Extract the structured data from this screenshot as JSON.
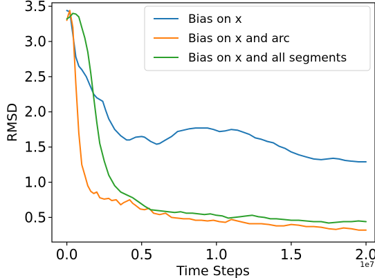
{
  "chart_data": {
    "type": "line",
    "title": "",
    "xlabel": "Time Steps",
    "ylabel": "RMSD",
    "x_offset_label": "1e7",
    "xlim": [
      -0.1,
      2.06
    ],
    "ylim": [
      0.15,
      3.55
    ],
    "xticks": [
      0.0,
      0.5,
      1.0,
      1.5,
      2.0
    ],
    "xtick_labels": [
      "0.0",
      "0.5",
      "1.0",
      "1.5",
      "2.0"
    ],
    "yticks": [
      0.5,
      1.0,
      1.5,
      2.0,
      2.5,
      3.0,
      3.5
    ],
    "ytick_labels": [
      "0.5",
      "1.0",
      "1.5",
      "2.0",
      "2.5",
      "3.0",
      "3.5"
    ],
    "grid": false,
    "legend_position": "top-right",
    "series": [
      {
        "name": "Bias on x",
        "color": "#1f77b4",
        "points": [
          [
            0,
            3.44
          ],
          [
            0.02,
            3.42
          ],
          [
            0.04,
            3.1
          ],
          [
            0.06,
            2.78
          ],
          [
            0.08,
            2.65
          ],
          [
            0.1,
            2.6
          ],
          [
            0.13,
            2.5
          ],
          [
            0.16,
            2.35
          ],
          [
            0.18,
            2.25
          ],
          [
            0.2,
            2.2
          ],
          [
            0.24,
            2.15
          ],
          [
            0.26,
            2.02
          ],
          [
            0.28,
            1.9
          ],
          [
            0.32,
            1.75
          ],
          [
            0.36,
            1.66
          ],
          [
            0.4,
            1.6
          ],
          [
            0.42,
            1.6
          ],
          [
            0.46,
            1.64
          ],
          [
            0.5,
            1.65
          ],
          [
            0.52,
            1.64
          ],
          [
            0.56,
            1.58
          ],
          [
            0.6,
            1.54
          ],
          [
            0.62,
            1.55
          ],
          [
            0.66,
            1.6
          ],
          [
            0.7,
            1.65
          ],
          [
            0.74,
            1.72
          ],
          [
            0.78,
            1.74
          ],
          [
            0.82,
            1.76
          ],
          [
            0.86,
            1.77
          ],
          [
            0.9,
            1.77
          ],
          [
            0.94,
            1.77
          ],
          [
            0.98,
            1.75
          ],
          [
            1.02,
            1.72
          ],
          [
            1.06,
            1.73
          ],
          [
            1.1,
            1.75
          ],
          [
            1.14,
            1.74
          ],
          [
            1.18,
            1.71
          ],
          [
            1.22,
            1.68
          ],
          [
            1.26,
            1.63
          ],
          [
            1.3,
            1.61
          ],
          [
            1.34,
            1.58
          ],
          [
            1.38,
            1.56
          ],
          [
            1.42,
            1.51
          ],
          [
            1.46,
            1.48
          ],
          [
            1.5,
            1.43
          ],
          [
            1.55,
            1.39
          ],
          [
            1.6,
            1.36
          ],
          [
            1.65,
            1.33
          ],
          [
            1.7,
            1.32
          ],
          [
            1.74,
            1.33
          ],
          [
            1.78,
            1.34
          ],
          [
            1.82,
            1.33
          ],
          [
            1.86,
            1.31
          ],
          [
            1.9,
            1.3
          ],
          [
            1.95,
            1.29
          ],
          [
            2.0,
            1.29
          ]
        ]
      },
      {
        "name": "Bias on x and arc",
        "color": "#ff7f0e",
        "points": [
          [
            0,
            3.3
          ],
          [
            0.01,
            3.38
          ],
          [
            0.02,
            3.44
          ],
          [
            0.04,
            3.2
          ],
          [
            0.06,
            2.4
          ],
          [
            0.08,
            1.7
          ],
          [
            0.1,
            1.25
          ],
          [
            0.12,
            1.1
          ],
          [
            0.14,
            0.95
          ],
          [
            0.16,
            0.87
          ],
          [
            0.18,
            0.84
          ],
          [
            0.2,
            0.86
          ],
          [
            0.22,
            0.78
          ],
          [
            0.25,
            0.76
          ],
          [
            0.28,
            0.77
          ],
          [
            0.3,
            0.74
          ],
          [
            0.33,
            0.75
          ],
          [
            0.36,
            0.68
          ],
          [
            0.38,
            0.71
          ],
          [
            0.4,
            0.73
          ],
          [
            0.42,
            0.75
          ],
          [
            0.44,
            0.7
          ],
          [
            0.46,
            0.67
          ],
          [
            0.49,
            0.62
          ],
          [
            0.52,
            0.61
          ],
          [
            0.55,
            0.63
          ],
          [
            0.58,
            0.56
          ],
          [
            0.62,
            0.54
          ],
          [
            0.66,
            0.56
          ],
          [
            0.7,
            0.5
          ],
          [
            0.74,
            0.49
          ],
          [
            0.78,
            0.48
          ],
          [
            0.82,
            0.48
          ],
          [
            0.86,
            0.46
          ],
          [
            0.9,
            0.46
          ],
          [
            0.94,
            0.45
          ],
          [
            0.98,
            0.46
          ],
          [
            1.02,
            0.44
          ],
          [
            1.06,
            0.43
          ],
          [
            1.1,
            0.47
          ],
          [
            1.14,
            0.45
          ],
          [
            1.18,
            0.43
          ],
          [
            1.22,
            0.41
          ],
          [
            1.26,
            0.41
          ],
          [
            1.3,
            0.41
          ],
          [
            1.35,
            0.4
          ],
          [
            1.4,
            0.38
          ],
          [
            1.45,
            0.38
          ],
          [
            1.5,
            0.4
          ],
          [
            1.55,
            0.39
          ],
          [
            1.6,
            0.37
          ],
          [
            1.65,
            0.37
          ],
          [
            1.7,
            0.36
          ],
          [
            1.75,
            0.34
          ],
          [
            1.8,
            0.33
          ],
          [
            1.85,
            0.35
          ],
          [
            1.9,
            0.34
          ],
          [
            1.95,
            0.32
          ],
          [
            2.0,
            0.32
          ]
        ]
      },
      {
        "name": "Bias on x and all segments",
        "color": "#2ca02c",
        "points": [
          [
            0,
            3.32
          ],
          [
            0.02,
            3.35
          ],
          [
            0.04,
            3.4
          ],
          [
            0.06,
            3.39
          ],
          [
            0.08,
            3.35
          ],
          [
            0.1,
            3.2
          ],
          [
            0.12,
            3.05
          ],
          [
            0.14,
            2.85
          ],
          [
            0.16,
            2.55
          ],
          [
            0.18,
            2.2
          ],
          [
            0.2,
            1.85
          ],
          [
            0.22,
            1.55
          ],
          [
            0.25,
            1.3
          ],
          [
            0.28,
            1.1
          ],
          [
            0.32,
            0.95
          ],
          [
            0.36,
            0.86
          ],
          [
            0.4,
            0.82
          ],
          [
            0.44,
            0.78
          ],
          [
            0.48,
            0.72
          ],
          [
            0.52,
            0.66
          ],
          [
            0.56,
            0.61
          ],
          [
            0.6,
            0.6
          ],
          [
            0.64,
            0.59
          ],
          [
            0.68,
            0.58
          ],
          [
            0.72,
            0.57
          ],
          [
            0.76,
            0.58
          ],
          [
            0.8,
            0.56
          ],
          [
            0.84,
            0.56
          ],
          [
            0.88,
            0.55
          ],
          [
            0.92,
            0.54
          ],
          [
            0.96,
            0.55
          ],
          [
            1.0,
            0.53
          ],
          [
            1.04,
            0.52
          ],
          [
            1.08,
            0.49
          ],
          [
            1.12,
            0.5
          ],
          [
            1.16,
            0.51
          ],
          [
            1.2,
            0.52
          ],
          [
            1.24,
            0.53
          ],
          [
            1.28,
            0.51
          ],
          [
            1.32,
            0.5
          ],
          [
            1.36,
            0.48
          ],
          [
            1.4,
            0.48
          ],
          [
            1.45,
            0.47
          ],
          [
            1.5,
            0.46
          ],
          [
            1.55,
            0.46
          ],
          [
            1.6,
            0.45
          ],
          [
            1.65,
            0.44
          ],
          [
            1.7,
            0.44
          ],
          [
            1.75,
            0.42
          ],
          [
            1.8,
            0.43
          ],
          [
            1.85,
            0.44
          ],
          [
            1.9,
            0.44
          ],
          [
            1.95,
            0.45
          ],
          [
            2.0,
            0.44
          ]
        ]
      }
    ]
  }
}
